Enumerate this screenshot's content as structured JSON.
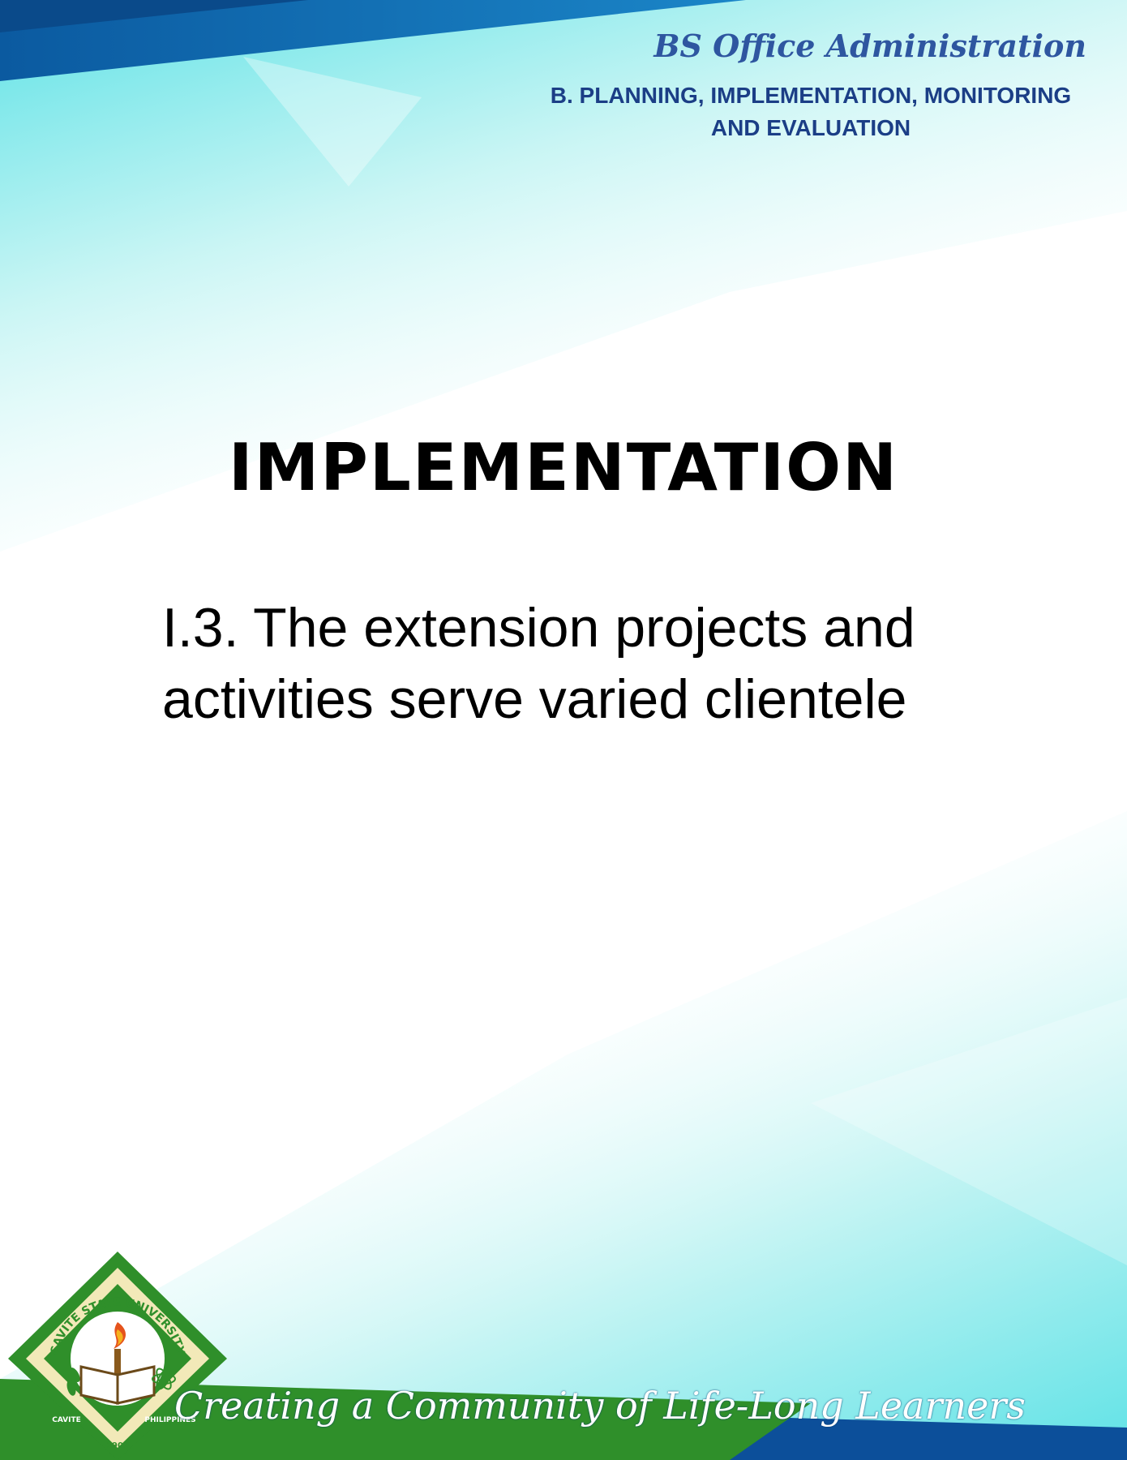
{
  "header": {
    "program": "BS Office Administration",
    "section_line1": "B. PLANNING, IMPLEMENTATION, MONITORING",
    "section_line2": "AND EVALUATION"
  },
  "main": {
    "title": "IMPLEMENTATION",
    "subtitle_line1": "I.3. The extension projects and",
    "subtitle_line2": "activities serve varied clientele"
  },
  "logo": {
    "university": "CAVITE STATE UNIVERSITY",
    "location": "CAVITE",
    "country": "PHILIPPINES",
    "year": "1906"
  },
  "footer": {
    "tagline": "Creating a Community of Life-Long Learners"
  },
  "colors": {
    "header_band": "#0a5fa8",
    "teal": "#62e3e6",
    "header_program": "#2e56a0",
    "header_section": "#1b3e86",
    "footer_green": "#2f8f2a",
    "footer_blue": "#0c4f9a"
  }
}
